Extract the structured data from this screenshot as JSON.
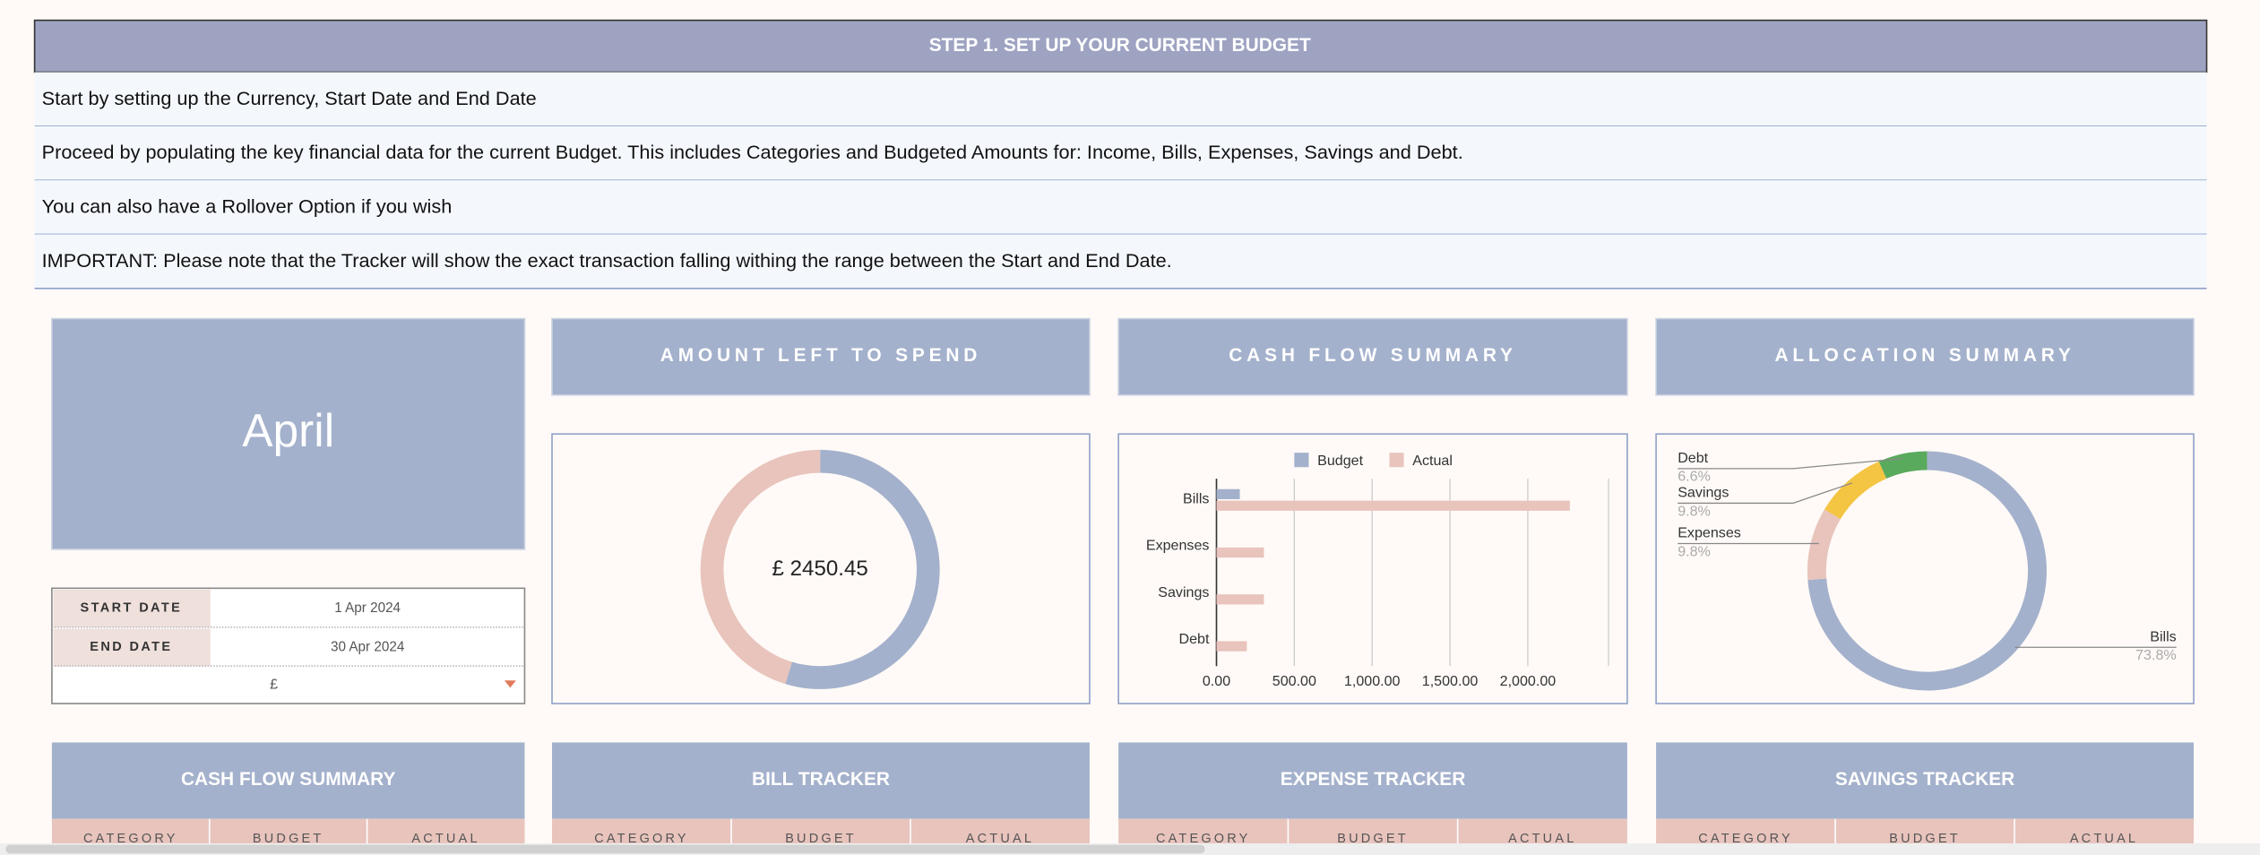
{
  "header": {
    "title": "STEP 1. SET UP YOUR CURRENT BUDGET"
  },
  "instructions": [
    "Start by setting up the Currency, Start Date and End Date",
    "Proceed by populating the key financial data for the current Budget. This includes Categories and Budgeted Amounts for: Income, Bills, Expenses, Savings and Debt.",
    "You can also have a Rollover Option if you wish",
    "IMPORTANT: Please note that the Tracker will show the exact transaction falling withing the range between the Start and End Date."
  ],
  "period": {
    "month": "April",
    "rows": [
      {
        "label": "START DATE",
        "value": "1 Apr 2024"
      },
      {
        "label": "END DATE",
        "value": "30 Apr 2024"
      }
    ],
    "currency": "£"
  },
  "panels": [
    "AMOUNT LEFT TO SPEND",
    "CASH FLOW SUMMARY",
    "ALLOCATION SUMMARY"
  ],
  "chart_data": [
    {
      "type": "donut",
      "center_label": "£ 2450.45",
      "values": [
        54.7,
        45.3
      ],
      "colors": [
        "#a4b1cc",
        "#e8c4bc"
      ]
    },
    {
      "type": "hbar",
      "categories": [
        "Bills",
        "Expenses",
        "Savings",
        "Debt"
      ],
      "series": [
        {
          "name": "Budget",
          "color": "#a4b1cc",
          "values": [
            150,
            0,
            0,
            0
          ]
        },
        {
          "name": "Actual",
          "color": "#e8c4bc",
          "values": [
            2270,
            305,
            305,
            195
          ]
        }
      ],
      "xlim": [
        0,
        2500
      ],
      "xticks": [
        {
          "value": 0,
          "label": "0.00"
        },
        {
          "value": 500,
          "label": "500.00"
        },
        {
          "value": 1000,
          "label": "1,000.00"
        },
        {
          "value": 1500,
          "label": "1,500.00"
        },
        {
          "value": 2000,
          "label": "2,000.00"
        }
      ],
      "legend": "top",
      "grid": true
    },
    {
      "type": "pie",
      "categories": [
        "Bills",
        "Expenses",
        "Savings",
        "Debt"
      ],
      "values": [
        73.8,
        9.8,
        9.8,
        6.6
      ],
      "value_labels": [
        "73.8%",
        "9.8%",
        "9.8%",
        "6.6%"
      ],
      "colors": [
        "#a4b1cc",
        "#e8c4bc",
        "#f4c542",
        "#5aaa5e"
      ]
    }
  ],
  "trackers": [
    {
      "title": "CASH FLOW SUMMARY",
      "columns": [
        "CATEGORY",
        "BUDGET",
        "ACTUAL"
      ]
    },
    {
      "title": "BILL TRACKER",
      "columns": [
        "CATEGORY",
        "BUDGET",
        "ACTUAL"
      ]
    },
    {
      "title": "EXPENSE TRACKER",
      "columns": [
        "CATEGORY",
        "BUDGET",
        "ACTUAL"
      ]
    },
    {
      "title": "SAVINGS TRACKER",
      "columns": [
        "CATEGORY",
        "BUDGET",
        "ACTUAL"
      ]
    }
  ]
}
